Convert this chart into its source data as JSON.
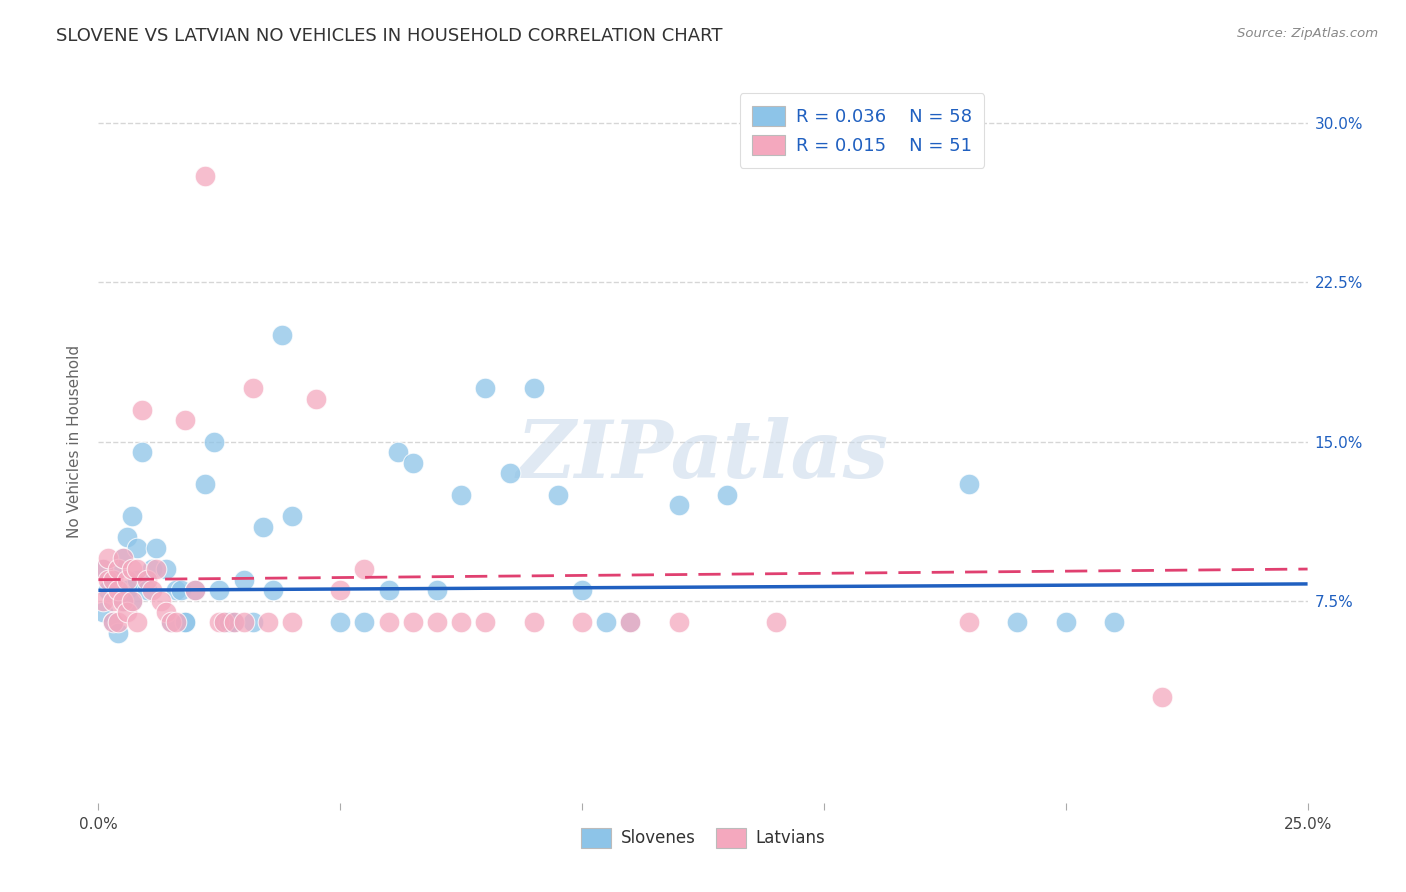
{
  "title": "SLOVENE VS LATVIAN NO VEHICLES IN HOUSEHOLD CORRELATION CHART",
  "source": "Source: ZipAtlas.com",
  "ylabel": "No Vehicles in Household",
  "xlim": [
    0.0,
    0.25
  ],
  "ylim": [
    -0.02,
    0.32
  ],
  "x_ticks": [
    0.0,
    0.05,
    0.1,
    0.15,
    0.2,
    0.25
  ],
  "x_tick_labels": [
    "0.0%",
    "",
    "",
    "",
    "",
    "25.0%"
  ],
  "y_ticks": [
    0.075,
    0.15,
    0.225,
    0.3
  ],
  "y_tick_labels": [
    "7.5%",
    "15.0%",
    "22.5%",
    "30.0%"
  ],
  "watermark": "ZIPatlas",
  "legend_blue_r": "R = 0.036",
  "legend_blue_n": "N = 58",
  "legend_pink_r": "R = 0.015",
  "legend_pink_n": "N = 51",
  "legend_blue_label": "Slovenes",
  "legend_pink_label": "Latvians",
  "blue_color": "#8DC4E8",
  "pink_color": "#F4A8BE",
  "trend_blue": "#2060C0",
  "trend_pink": "#E04070",
  "trend_blue_y0": 0.08,
  "trend_blue_y1": 0.083,
  "trend_pink_y0": 0.085,
  "trend_pink_y1": 0.09,
  "blue_scatter_x": [
    0.001,
    0.001,
    0.002,
    0.003,
    0.003,
    0.004,
    0.004,
    0.005,
    0.005,
    0.006,
    0.006,
    0.007,
    0.007,
    0.008,
    0.008,
    0.009,
    0.01,
    0.011,
    0.012,
    0.014,
    0.015,
    0.016,
    0.017,
    0.018,
    0.018,
    0.02,
    0.022,
    0.024,
    0.025,
    0.026,
    0.027,
    0.028,
    0.03,
    0.032,
    0.034,
    0.036,
    0.038,
    0.04,
    0.05,
    0.055,
    0.06,
    0.062,
    0.065,
    0.07,
    0.075,
    0.08,
    0.085,
    0.09,
    0.095,
    0.1,
    0.105,
    0.11,
    0.12,
    0.13,
    0.18,
    0.19,
    0.2,
    0.21
  ],
  "blue_scatter_y": [
    0.09,
    0.07,
    0.08,
    0.085,
    0.065,
    0.09,
    0.06,
    0.095,
    0.075,
    0.105,
    0.08,
    0.115,
    0.075,
    0.1,
    0.085,
    0.145,
    0.08,
    0.09,
    0.1,
    0.09,
    0.065,
    0.08,
    0.08,
    0.065,
    0.065,
    0.08,
    0.13,
    0.15,
    0.08,
    0.065,
    0.065,
    0.065,
    0.085,
    0.065,
    0.11,
    0.08,
    0.2,
    0.115,
    0.065,
    0.065,
    0.08,
    0.145,
    0.14,
    0.08,
    0.125,
    0.175,
    0.135,
    0.175,
    0.125,
    0.08,
    0.065,
    0.065,
    0.12,
    0.125,
    0.13,
    0.065,
    0.065,
    0.065
  ],
  "pink_scatter_x": [
    0.001,
    0.001,
    0.002,
    0.002,
    0.003,
    0.003,
    0.003,
    0.004,
    0.004,
    0.004,
    0.005,
    0.005,
    0.006,
    0.006,
    0.007,
    0.007,
    0.008,
    0.008,
    0.009,
    0.01,
    0.011,
    0.012,
    0.013,
    0.014,
    0.015,
    0.016,
    0.018,
    0.02,
    0.022,
    0.025,
    0.026,
    0.028,
    0.03,
    0.032,
    0.035,
    0.04,
    0.045,
    0.05,
    0.055,
    0.06,
    0.065,
    0.07,
    0.075,
    0.08,
    0.09,
    0.1,
    0.11,
    0.12,
    0.14,
    0.18,
    0.22
  ],
  "pink_scatter_y": [
    0.09,
    0.075,
    0.095,
    0.085,
    0.085,
    0.075,
    0.065,
    0.09,
    0.08,
    0.065,
    0.095,
    0.075,
    0.085,
    0.07,
    0.09,
    0.075,
    0.09,
    0.065,
    0.165,
    0.085,
    0.08,
    0.09,
    0.075,
    0.07,
    0.065,
    0.065,
    0.16,
    0.08,
    0.275,
    0.065,
    0.065,
    0.065,
    0.065,
    0.175,
    0.065,
    0.065,
    0.17,
    0.08,
    0.09,
    0.065,
    0.065,
    0.065,
    0.065,
    0.065,
    0.065,
    0.065,
    0.065,
    0.065,
    0.065,
    0.065,
    0.03
  ],
  "background_color": "#ffffff",
  "grid_color": "#cccccc"
}
